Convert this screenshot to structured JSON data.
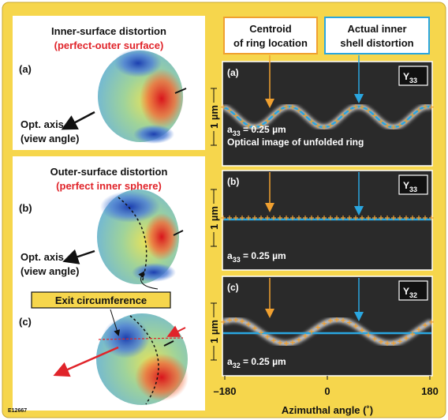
{
  "figure_id": "E12667",
  "left_panels": [
    {
      "title": "Inner-surface distortion",
      "subtitle": "(perfect-outer surface)",
      "part_label": "(a)",
      "axis_label": [
        "Opt. axis",
        "(view angle)"
      ]
    },
    {
      "title": "Outer-surface distortion",
      "subtitle": "(perfect inner sphere)",
      "part_labels": [
        "(b)",
        "(c)"
      ],
      "axis_label": [
        "Opt. axis",
        "(view angle)"
      ],
      "callout": "Exit circumference"
    }
  ],
  "legend": {
    "centroid": [
      "Centroid",
      "of ring location"
    ],
    "shell": [
      "Actual inner",
      "shell distortion"
    ]
  },
  "image_panels": [
    {
      "label": "(a)",
      "mode": {
        "base": "Y",
        "sub": "33"
      },
      "scale": "1 µm",
      "amplitude": {
        "base": "a",
        "sub": "33",
        "rest": " = 0.25 µm"
      },
      "caption": "Optical image of unfolded ring"
    },
    {
      "label": "(b)",
      "mode": {
        "base": "Y",
        "sub": "33"
      },
      "scale": "1 µm",
      "amplitude": {
        "base": "a",
        "sub": "33",
        "rest": " = 0.25 µm"
      }
    },
    {
      "label": "(c)",
      "mode": {
        "base": "Y",
        "sub": "32"
      },
      "scale": "1 µm",
      "amplitude": {
        "base": "a",
        "sub": "32",
        "rest": " = 0.25 µm"
      }
    }
  ],
  "x_axis": {
    "title": "Azimuthal angle (˚)",
    "xlim": [
      -180,
      180
    ],
    "ticks": [
      {
        "value": -180,
        "label": "–180"
      },
      0,
      180
    ]
  }
}
